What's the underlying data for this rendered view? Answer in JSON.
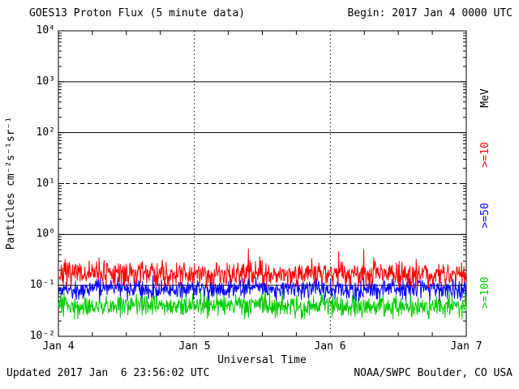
{
  "header": {
    "title": "GOES13 Proton Flux (5 minute data)",
    "begin_label": "Begin: 2017 Jan 4 0000 UTC"
  },
  "footer": {
    "updated": "Updated 2017 Jan  6 23:56:02 UTC",
    "source": "NOAA/SWPC Boulder, CO USA"
  },
  "axes": {
    "xlabel": "Universal Time",
    "ylabel": "Particles cm⁻²s⁻¹sr⁻¹",
    "x_ticks": [
      "Jan 4",
      "Jan 5",
      "Jan 6",
      "Jan 7"
    ],
    "y_ticks": [
      "10⁴",
      "10³",
      "10²",
      "10¹",
      "10⁰",
      "10⁻¹",
      "10⁻²"
    ]
  },
  "right_labels": [
    {
      "text": "MeV",
      "color": "#000000"
    },
    {
      "text": ">=10",
      "color": "#ff0000"
    },
    {
      "text": ">=50",
      "color": "#0000ff"
    },
    {
      "text": ">=100",
      "color": "#00cc00"
    }
  ],
  "chart_data": {
    "type": "line",
    "title": "GOES13 Proton Flux (5 minute data)",
    "xlabel": "Universal Time",
    "ylabel": "Particles cm-2 s-1 sr-1 (log scale)",
    "x_ticks": [
      "Jan 4",
      "Jan 5",
      "Jan 6",
      "Jan 7"
    ],
    "x_span_days": 3,
    "ylim_log10": [
      -2,
      4
    ],
    "cadence_minutes": 5,
    "points_per_series": 864,
    "legend_position": "right",
    "grid": {
      "solid_hlines_log10": [
        3,
        2,
        0,
        -1
      ],
      "dashed_hlines_log10": [
        1
      ],
      "dotted_vlines_days": [
        1,
        2
      ]
    },
    "series": [
      {
        "name": ">=100 MeV",
        "color": "#00cc00",
        "seed": 31,
        "baseline": 0.04,
        "noise_log10_sigma": 0.11,
        "min": 0.022,
        "max": 0.1,
        "spike_prob": 0.0,
        "approx_mean_flux": 0.04
      },
      {
        "name": ">=50 MeV",
        "color": "#0000ff",
        "seed": 17,
        "baseline": 0.085,
        "noise_log10_sigma": 0.1,
        "min": 0.05,
        "max": 0.22,
        "spike_prob": 0.0,
        "approx_mean_flux": 0.085
      },
      {
        "name": ">=10 MeV",
        "color": "#ff0000",
        "seed": 7,
        "baseline": 0.17,
        "noise_log10_sigma": 0.12,
        "min": 0.09,
        "max": 0.55,
        "spike_prob": 0.006,
        "approx_mean_flux": 0.17
      }
    ]
  }
}
